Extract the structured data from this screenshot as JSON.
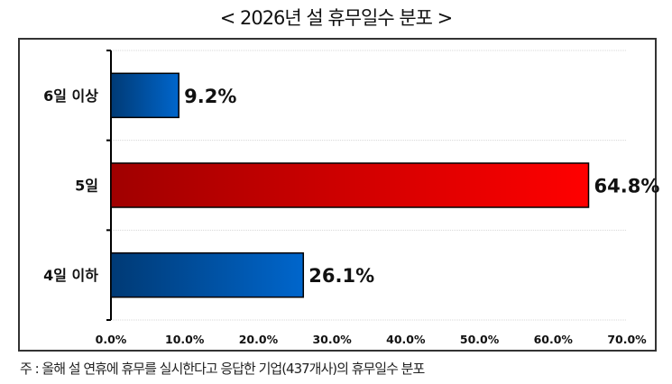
{
  "chart_data": {
    "type": "bar",
    "orientation": "horizontal",
    "title": "< 2026년 설 휴무일수 분포 >",
    "categories": [
      "6일 이상",
      "5일",
      "4일 이하"
    ],
    "values": [
      9.2,
      64.8,
      26.1
    ],
    "data_labels": [
      "9.2%",
      "64.8%",
      "26.1%"
    ],
    "bar_colors": [
      "#0066cc",
      "#ff0000",
      "#0066cc"
    ],
    "bar_gradient_start": [
      "#003a75",
      "#a00000",
      "#003a75"
    ],
    "xlim": [
      0,
      70
    ],
    "xticks": [
      "0.0%",
      "10.0%",
      "20.0%",
      "30.0%",
      "40.0%",
      "50.0%",
      "60.0%",
      "70.0%"
    ],
    "grid": true,
    "legend": "none"
  },
  "note": "주 : 올해 설 연휴에 휴무를 실시한다고 응답한 기업(437개사)의 휴무일수 분포"
}
